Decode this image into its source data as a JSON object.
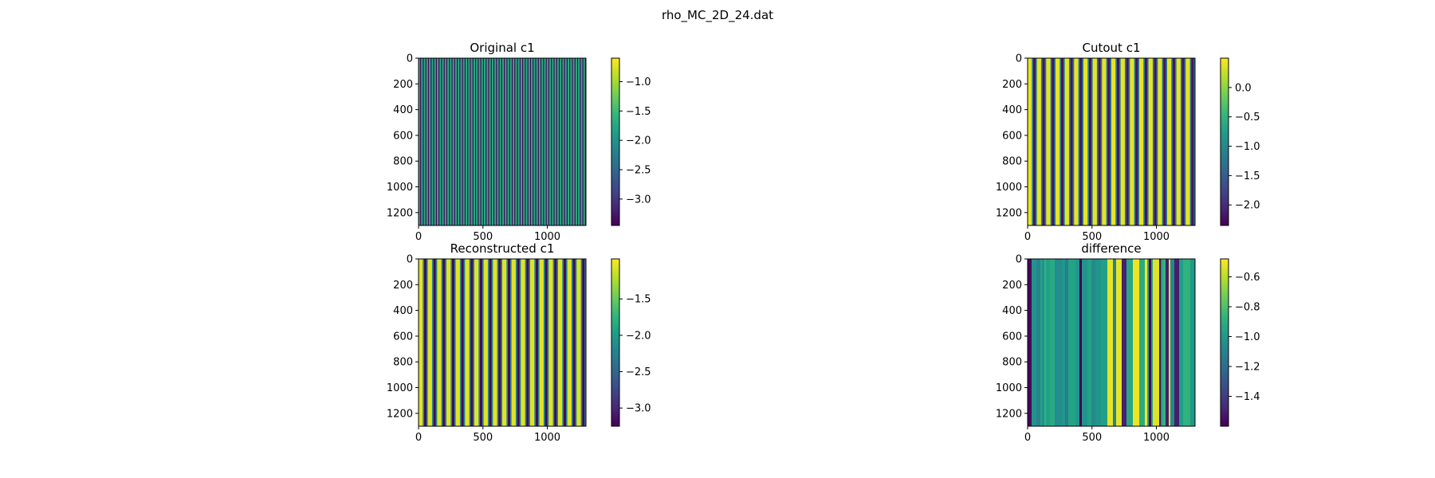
{
  "figure": {
    "suptitle": "rho_MC_2D_24.dat"
  },
  "colors": {
    "viridis": [
      "#440154",
      "#482878",
      "#3e4989",
      "#31688e",
      "#26828e",
      "#1f9e89",
      "#35b779",
      "#6ece58",
      "#b5de2b",
      "#fde725"
    ],
    "axes": "#000000",
    "background": "#ffffff"
  },
  "chart_data": [
    {
      "type": "heatmap",
      "title": "Original c1",
      "xlim": [
        0,
        1300
      ],
      "ylim": [
        1300,
        0
      ],
      "xticks": [
        0,
        500,
        1000
      ],
      "yticks": [
        0,
        200,
        400,
        600,
        800,
        1000,
        1200
      ],
      "pattern": "vertical stripes",
      "stripe_count": 64,
      "stripe_values": [
        -3.4,
        -1.7
      ],
      "colorbar": {
        "range": [
          -3.45,
          -0.6
        ],
        "ticks": [
          -1.0,
          -1.5,
          -2.0,
          -2.5,
          -3.0
        ],
        "tick_labels": [
          "−1.0",
          "−1.5",
          "−2.0",
          "−2.5",
          "−3.0"
        ]
      }
    },
    {
      "type": "heatmap",
      "title": "Cutout c1",
      "xlim": [
        0,
        1300
      ],
      "ylim": [
        1300,
        0
      ],
      "xticks": [
        0,
        500,
        1000
      ],
      "yticks": [
        0,
        200,
        400,
        600,
        800,
        1000,
        1200
      ],
      "pattern": "vertical stripes",
      "stripe_count": 18,
      "stripe_values": [
        0.4,
        -1.2,
        -2.2,
        -1.2
      ],
      "colorbar": {
        "range": [
          -2.35,
          0.5
        ],
        "ticks": [
          0.0,
          -0.5,
          -1.0,
          -1.5,
          -2.0
        ],
        "tick_labels": [
          "0.0",
          "−0.5",
          "−1.0",
          "−1.5",
          "−2.0"
        ]
      }
    },
    {
      "type": "heatmap",
      "title": "Reconstructed c1",
      "xlim": [
        0,
        1300
      ],
      "ylim": [
        1300,
        0
      ],
      "xticks": [
        0,
        500,
        1000
      ],
      "yticks": [
        0,
        200,
        400,
        600,
        800,
        1000,
        1200
      ],
      "pattern": "vertical stripes",
      "stripe_count": 18,
      "stripe_values": [
        -1.05,
        -2.2,
        -3.2,
        -2.2
      ],
      "colorbar": {
        "range": [
          -3.25,
          -0.95
        ],
        "ticks": [
          -1.5,
          -2.0,
          -2.5,
          -3.0
        ],
        "tick_labels": [
          "−1.5",
          "−2.0",
          "−2.5",
          "−3.0"
        ]
      }
    },
    {
      "type": "heatmap",
      "title": "difference",
      "xlim": [
        0,
        1300
      ],
      "ylim": [
        1300,
        0
      ],
      "xticks": [
        0,
        500,
        1000
      ],
      "yticks": [
        0,
        200,
        400,
        600,
        800,
        1000,
        1200
      ],
      "pattern": "irregular vertical stripes",
      "stripe_values": [
        -0.5,
        -1.6,
        -1.05,
        -0.95,
        -1.3
      ],
      "colorbar": {
        "range": [
          -1.6,
          -0.48
        ],
        "ticks": [
          -0.6,
          -0.8,
          -1.0,
          -1.2,
          -1.4
        ],
        "tick_labels": [
          "−0.6",
          "−0.8",
          "−1.0",
          "−1.2",
          "−1.4"
        ]
      }
    }
  ]
}
